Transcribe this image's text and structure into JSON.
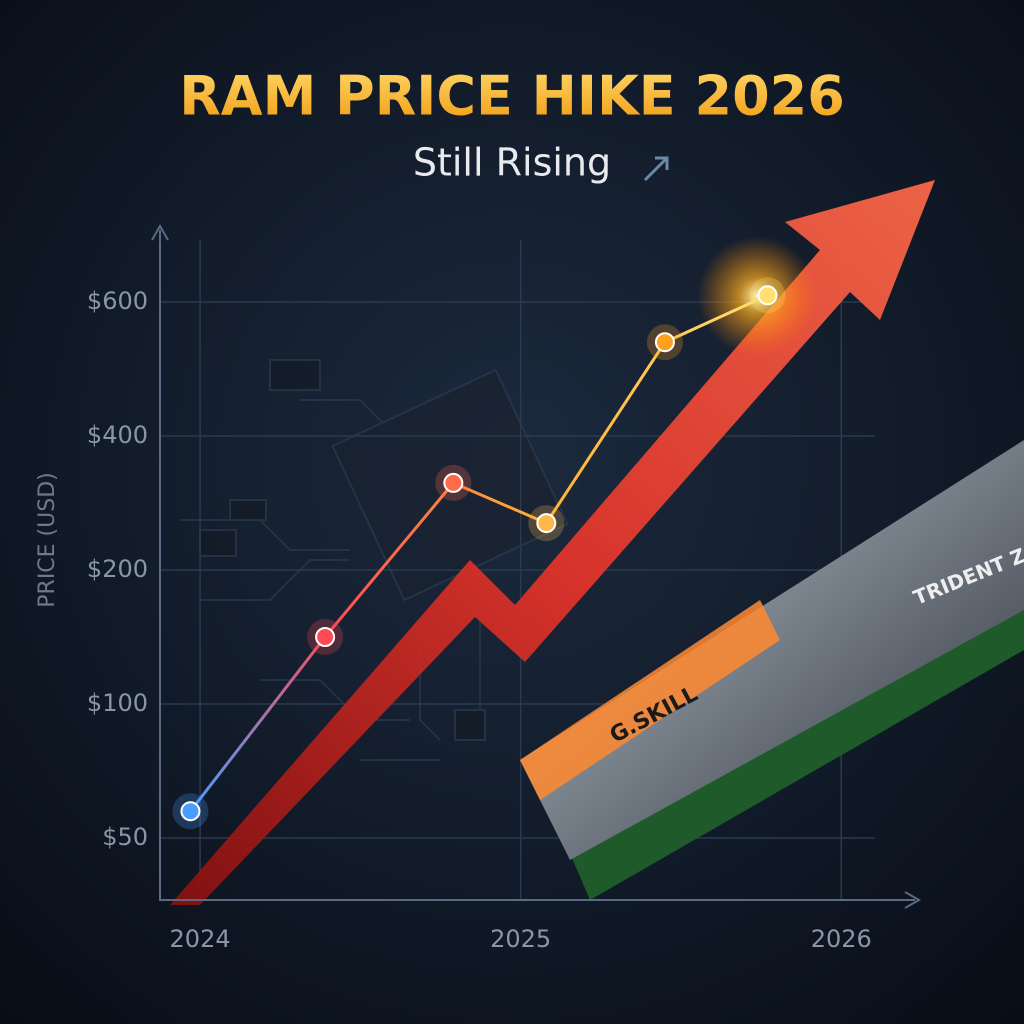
{
  "chart_data": {
    "type": "line",
    "title": "RAM PRICE HIKE 2026",
    "subtitle": "Still Rising",
    "y_label": "PRICE (USD)",
    "x": [
      2023.97,
      2024.39,
      2024.79,
      2025.08,
      2025.45,
      2025.77
    ],
    "series": [
      {
        "name": "RAM price",
        "color": "#e84a3a",
        "values": [
          60,
          150,
          330,
          270,
          540,
          610
        ],
        "point_colors": [
          "#4a9cff",
          "#ff4a55",
          "#ff6a4a",
          "#ffb84a",
          "#ffa020",
          "#ffe070"
        ]
      }
    ],
    "xlim": [
      2023.875,
      2026.23
    ],
    "xticks": [
      2024,
      2025,
      2026
    ],
    "ylim": [
      27,
      700
    ],
    "yticks": [
      {
        "value": 50,
        "label": "$50"
      },
      {
        "value": 100,
        "label": "$100"
      },
      {
        "value": 200,
        "label": "$200"
      },
      {
        "value": 400,
        "label": "$400"
      },
      {
        "value": 600,
        "label": "$600"
      }
    ],
    "y_scale": "tick-spaced",
    "grid": true,
    "illustration_labels": [
      "G.SKILL",
      "TRIDENT Z"
    ]
  }
}
